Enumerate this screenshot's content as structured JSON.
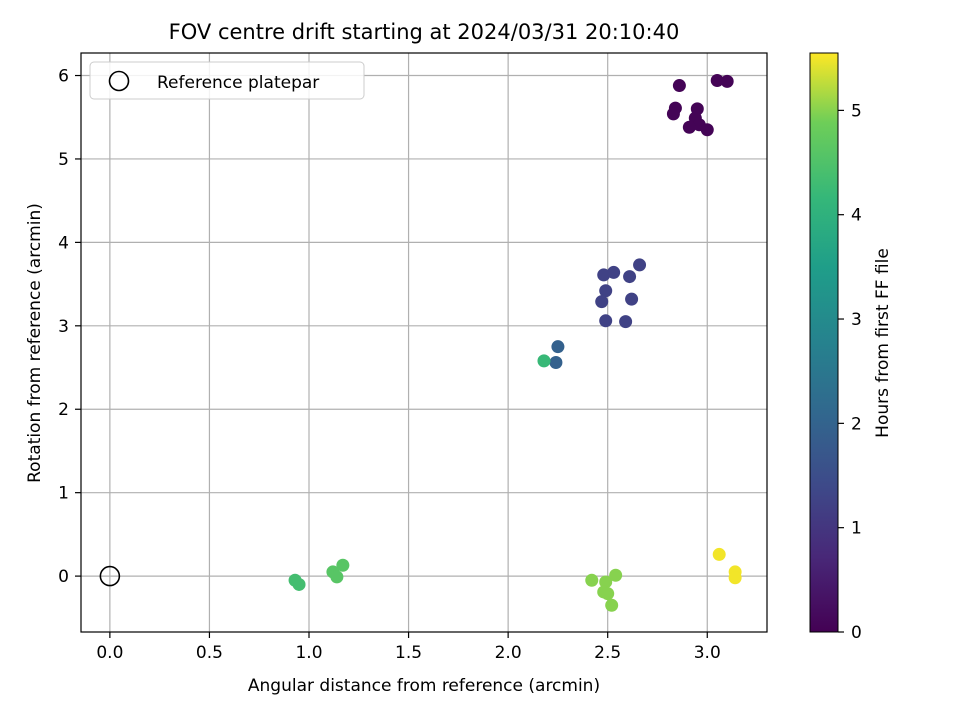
{
  "chart_data": {
    "type": "scatter",
    "title": "FOV centre drift starting at 2024/03/31 20:10:40",
    "xlabel": "Angular distance from reference (arcmin)",
    "ylabel": "Rotation from reference (arcmin)",
    "xlim": [
      -0.145,
      3.3
    ],
    "ylim": [
      -0.67,
      6.27
    ],
    "x_ticks": [
      0.0,
      0.5,
      1.0,
      1.5,
      2.0,
      2.5,
      3.0
    ],
    "y_ticks": [
      0,
      1,
      2,
      3,
      4,
      5,
      6
    ],
    "grid": true,
    "legend": {
      "placement": "top-left",
      "entries": [
        "Reference platepar"
      ]
    },
    "reference_point": {
      "x": 0.0,
      "y": 0.0,
      "label": "Reference platepar"
    },
    "colorbar": {
      "label": "Hours from first FF file",
      "colormap": "viridis",
      "range": [
        0,
        5.55
      ],
      "ticks": [
        0,
        1,
        2,
        3,
        4,
        5
      ]
    },
    "points": [
      {
        "x": 2.86,
        "y": 5.88,
        "c": 0.05
      },
      {
        "x": 3.05,
        "y": 5.94,
        "c": 0.05
      },
      {
        "x": 3.1,
        "y": 5.93,
        "c": 0.05
      },
      {
        "x": 2.84,
        "y": 5.61,
        "c": 0.05
      },
      {
        "x": 2.83,
        "y": 5.54,
        "c": 0.05
      },
      {
        "x": 2.95,
        "y": 5.6,
        "c": 0.05
      },
      {
        "x": 2.94,
        "y": 5.49,
        "c": 0.05
      },
      {
        "x": 2.96,
        "y": 5.41,
        "c": 0.05
      },
      {
        "x": 2.91,
        "y": 5.38,
        "c": 0.05
      },
      {
        "x": 3.0,
        "y": 5.35,
        "c": 0.05
      },
      {
        "x": 2.66,
        "y": 3.73,
        "c": 1.25
      },
      {
        "x": 2.53,
        "y": 3.64,
        "c": 1.25
      },
      {
        "x": 2.48,
        "y": 3.61,
        "c": 1.25
      },
      {
        "x": 2.61,
        "y": 3.59,
        "c": 1.25
      },
      {
        "x": 2.49,
        "y": 3.42,
        "c": 1.25
      },
      {
        "x": 2.47,
        "y": 3.29,
        "c": 1.25
      },
      {
        "x": 2.62,
        "y": 3.32,
        "c": 1.25
      },
      {
        "x": 2.49,
        "y": 3.06,
        "c": 1.25
      },
      {
        "x": 2.59,
        "y": 3.05,
        "c": 1.25
      },
      {
        "x": 2.25,
        "y": 2.75,
        "c": 1.95
      },
      {
        "x": 2.24,
        "y": 2.56,
        "c": 1.95
      },
      {
        "x": 2.18,
        "y": 2.58,
        "c": 4.2
      },
      {
        "x": 0.93,
        "y": -0.05,
        "c": 4.35
      },
      {
        "x": 0.95,
        "y": -0.1,
        "c": 4.35
      },
      {
        "x": 1.12,
        "y": 0.05,
        "c": 4.6
      },
      {
        "x": 1.17,
        "y": 0.13,
        "c": 4.6
      },
      {
        "x": 1.14,
        "y": -0.01,
        "c": 4.6
      },
      {
        "x": 2.42,
        "y": -0.05,
        "c": 5.0
      },
      {
        "x": 2.49,
        "y": -0.07,
        "c": 5.0
      },
      {
        "x": 2.54,
        "y": 0.01,
        "c": 5.0
      },
      {
        "x": 2.48,
        "y": -0.19,
        "c": 5.0
      },
      {
        "x": 2.5,
        "y": -0.21,
        "c": 5.0
      },
      {
        "x": 2.52,
        "y": -0.35,
        "c": 5.0
      },
      {
        "x": 3.06,
        "y": 0.26,
        "c": 5.5
      },
      {
        "x": 3.14,
        "y": 0.05,
        "c": 5.5
      },
      {
        "x": 3.14,
        "y": -0.02,
        "c": 5.5
      }
    ]
  }
}
